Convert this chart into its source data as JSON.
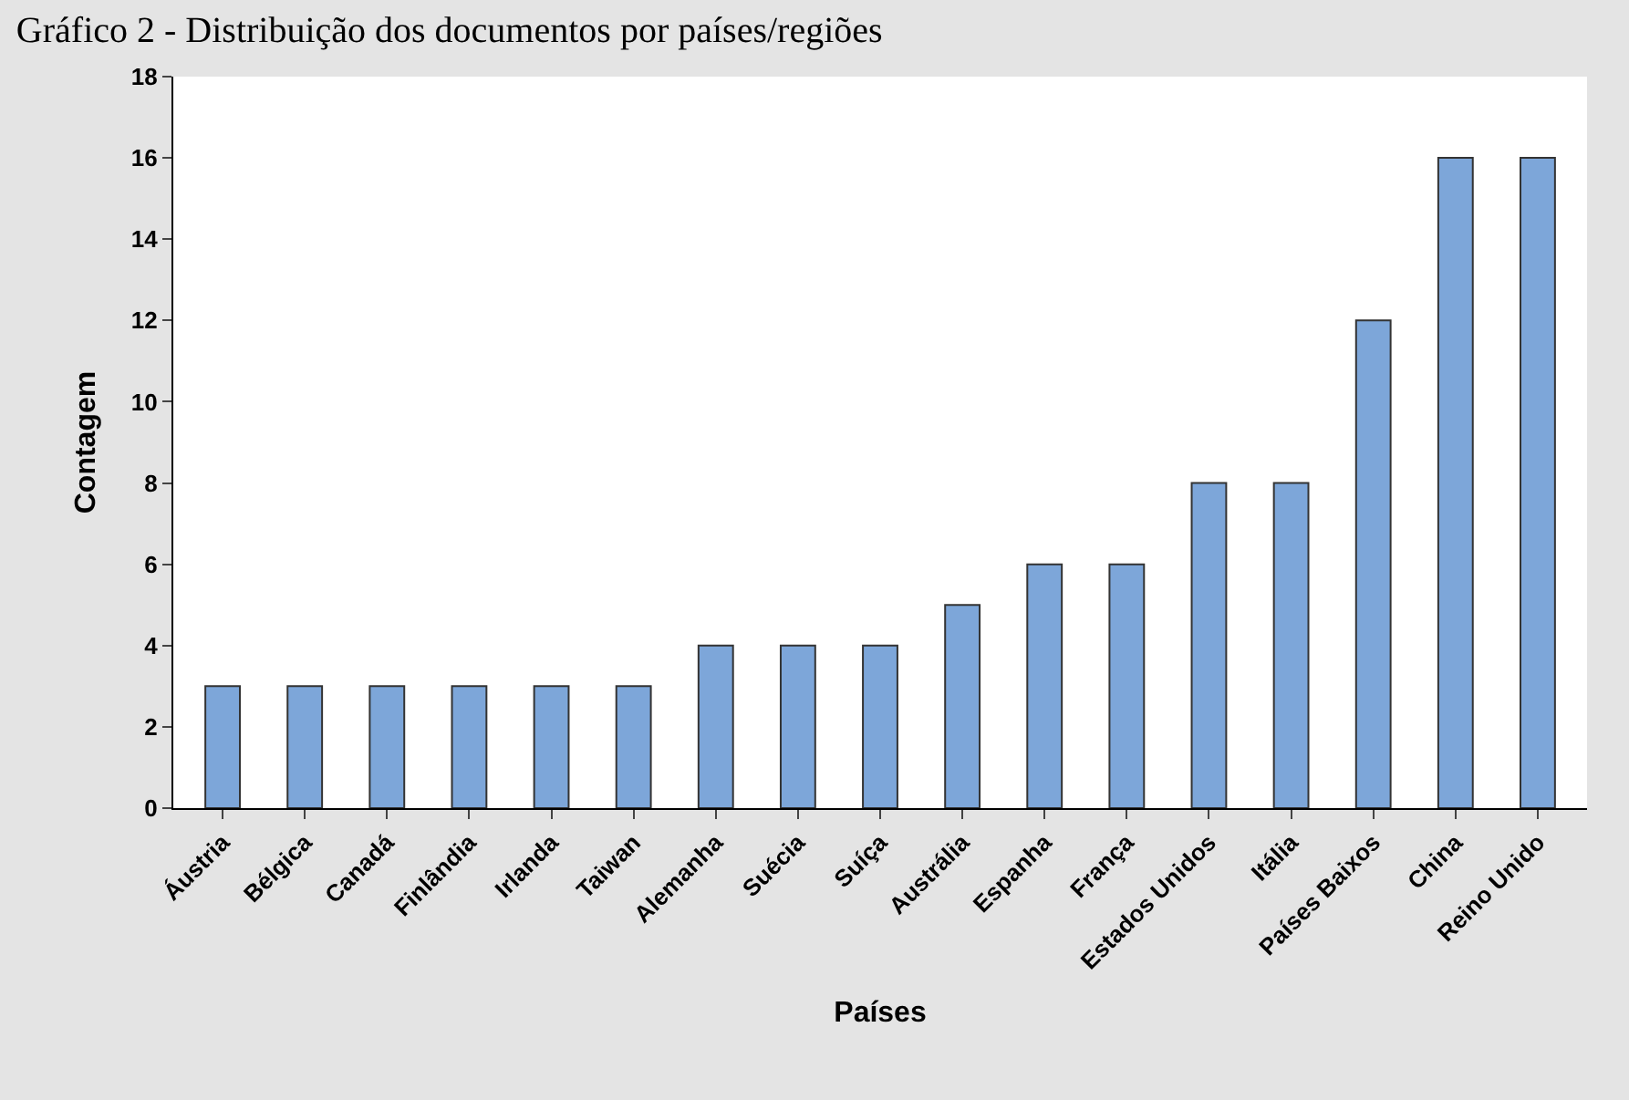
{
  "chart_data": {
    "type": "bar",
    "title": "Gráfico 2 - Distribuição dos documentos por países/regiões",
    "xlabel": "Países",
    "ylabel": "Contagem",
    "categories": [
      "Áustria",
      "Bélgica",
      "Canadá",
      "Finlândia",
      "Irlanda",
      "Taiwan",
      "Alemanha",
      "Suécia",
      "Suíça",
      "Austrália",
      "Espanha",
      "França",
      "Estados Unidos",
      "Itália",
      "Países Baixos",
      "China",
      "Reino Unido"
    ],
    "values": [
      3,
      3,
      3,
      3,
      3,
      3,
      4,
      4,
      4,
      5,
      6,
      6,
      8,
      8,
      12,
      16,
      16
    ],
    "color": "#7da6d9",
    "ylim": [
      0,
      18
    ],
    "yticks": [
      0,
      2,
      4,
      6,
      8,
      10,
      12,
      14,
      16,
      18
    ]
  }
}
